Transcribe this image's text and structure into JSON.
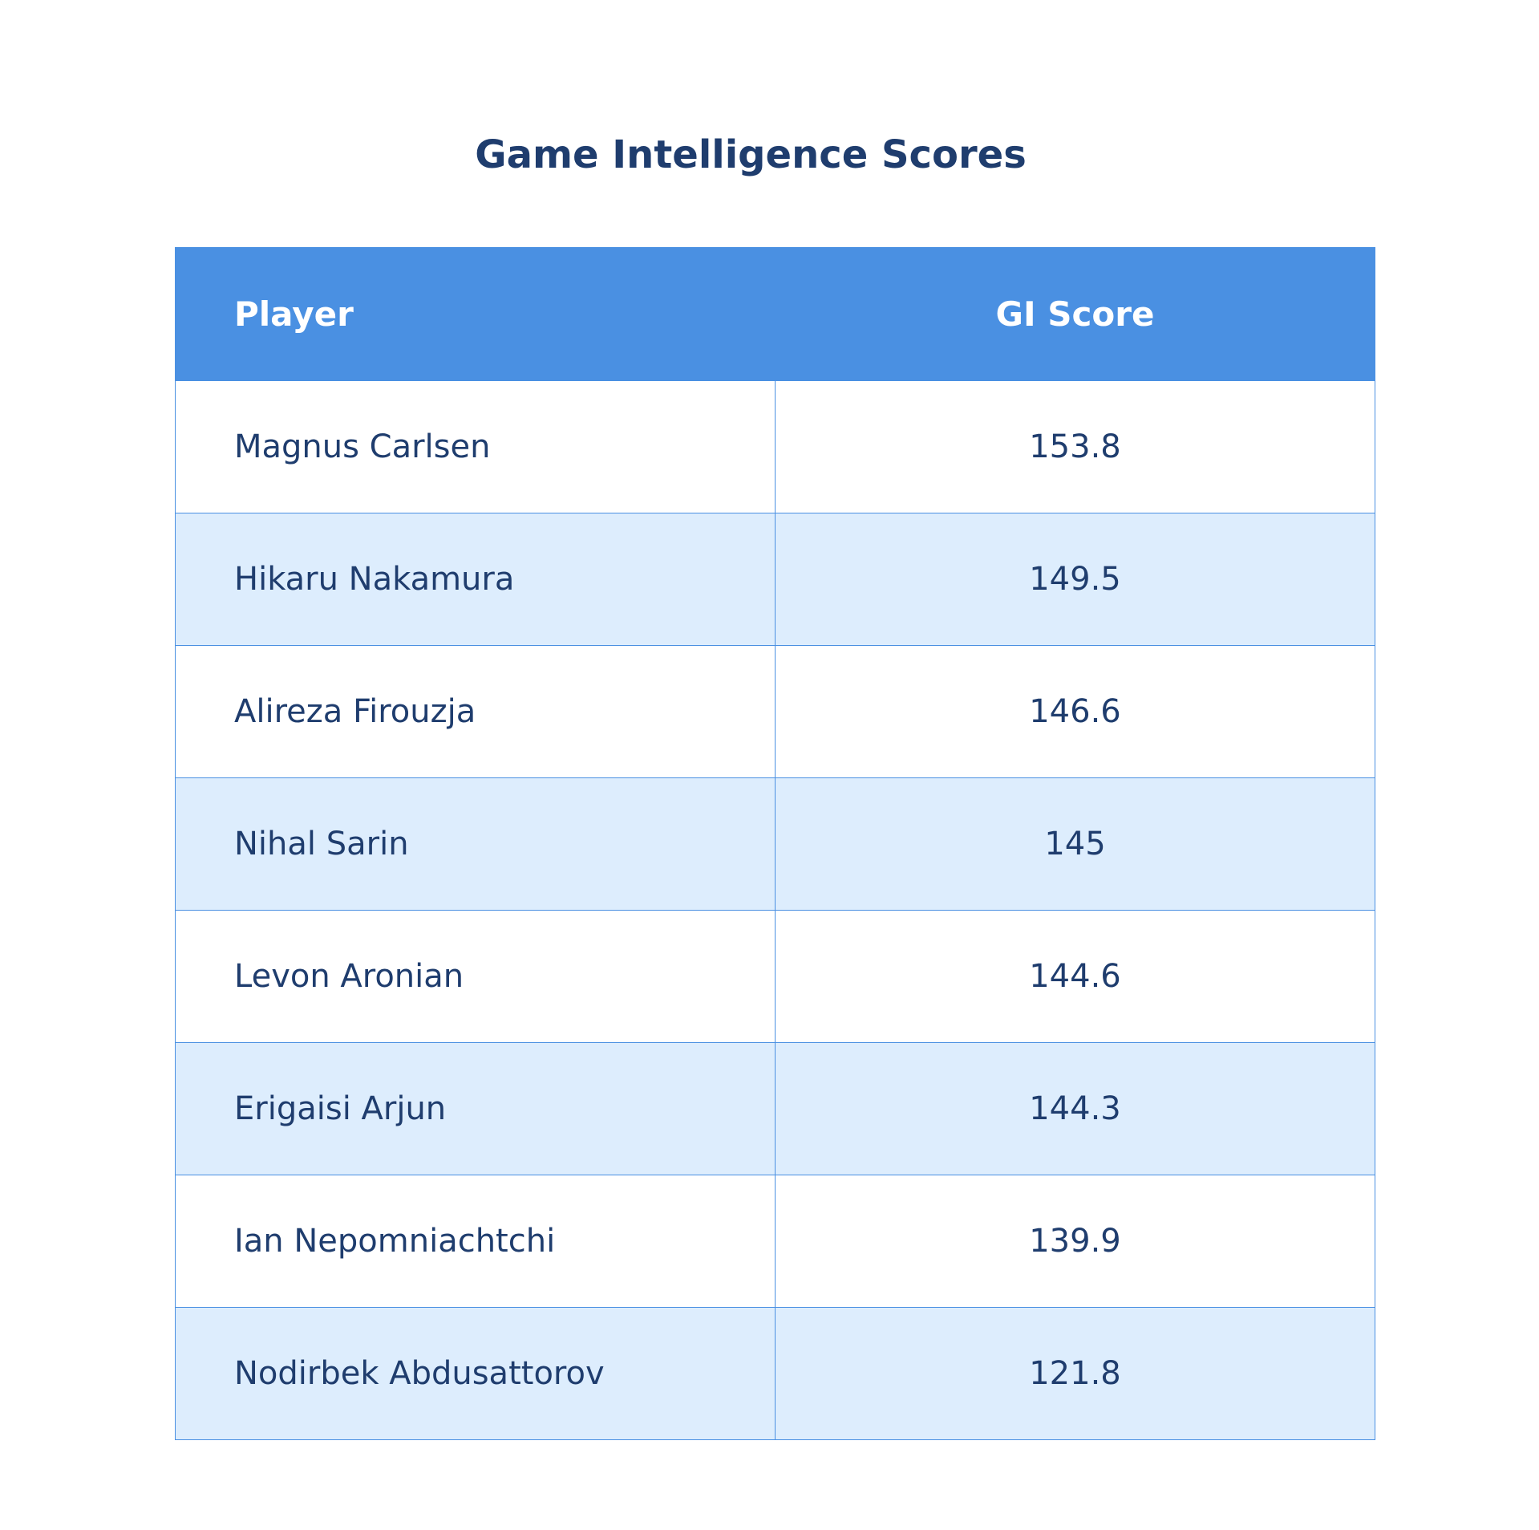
{
  "chart_data": {
    "type": "table",
    "title": "Game Intelligence Scores",
    "columns": [
      "Player",
      "GI Score"
    ],
    "rows": [
      {
        "player": "Magnus Carlsen",
        "score": "153.8"
      },
      {
        "player": "Hikaru Nakamura",
        "score": "149.5"
      },
      {
        "player": "Alireza Firouzja",
        "score": "146.6"
      },
      {
        "player": "Nihal Sarin",
        "score": "145"
      },
      {
        "player": "Levon Aronian",
        "score": "144.6"
      },
      {
        "player": "Erigaisi Arjun",
        "score": "144.3"
      },
      {
        "player": "Ian Nepomniachtchi",
        "score": "139.9"
      },
      {
        "player": "Nodirbek Abdusattorov",
        "score": "121.8"
      }
    ]
  },
  "colors": {
    "header_bg": "#4a90e2",
    "header_text": "#ffffff",
    "row_alt_bg": "#ddedfd",
    "text": "#1f3d6e",
    "border": "#4a90e2"
  }
}
